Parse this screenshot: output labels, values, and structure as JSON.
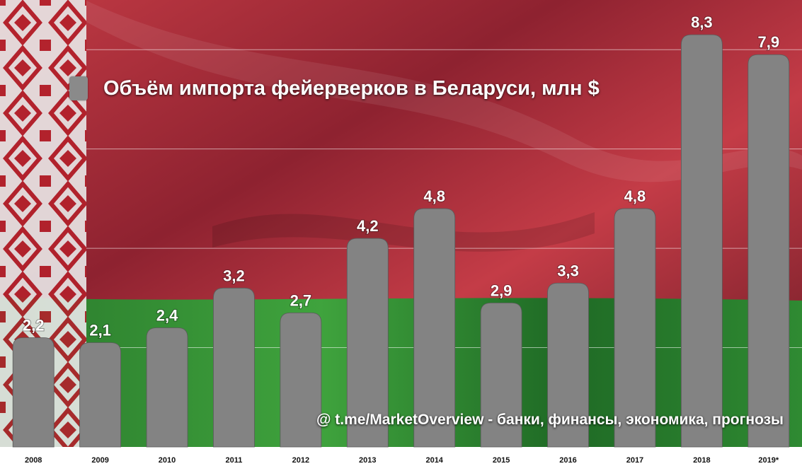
{
  "colors": {
    "bar": "#838383",
    "bar_label": "#ffffff",
    "flag_red": "#b7343f",
    "flag_green": "#2f8a32",
    "ornament_red": "#b3212b",
    "ornament_white": "#ecebeb",
    "axis_label": "#111111"
  },
  "legend": {
    "label": "Объём импорта фейерверков в Беларуси, млн $"
  },
  "watermark": "@ t.me/MarketOverview - банки, финансы, экономика, прогнозы",
  "chart_data": {
    "type": "bar",
    "categories": [
      "2008",
      "2009",
      "2010",
      "2011",
      "2012",
      "2013",
      "2014",
      "2015",
      "2016",
      "2017",
      "2018",
      "2019*"
    ],
    "series": [
      {
        "name": "Объём импорта фейерверков в Беларуси, млн $",
        "values": [
          2.2,
          2.1,
          2.4,
          3.2,
          2.7,
          4.2,
          4.8,
          2.9,
          3.3,
          4.8,
          8.3,
          7.9
        ],
        "labels": [
          "2,2",
          "2,1",
          "2,4",
          "3,2",
          "2,7",
          "4,2",
          "4,8",
          "2,9",
          "3,3",
          "4,8",
          "8,3",
          "7,9"
        ]
      }
    ],
    "ylim": [
      0,
      9
    ],
    "grid": true,
    "legend_position": "top-left"
  }
}
